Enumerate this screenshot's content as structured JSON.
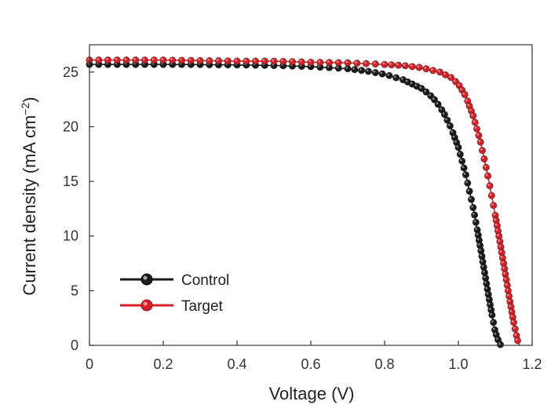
{
  "chart_data": {
    "type": "scatter",
    "xlabel": "Voltage (V)",
    "ylabel": {
      "base": "Current density (mA cm",
      "sup": "−2",
      "close": ")"
    },
    "xlim": [
      0,
      1.2
    ],
    "ylim": [
      0,
      27.5
    ],
    "xticks": [
      0,
      0.2,
      0.4,
      0.6,
      0.8,
      1.0,
      1.2
    ],
    "xtick_labels": [
      "0",
      "0.2",
      "0.4",
      "0.6",
      "0.8",
      "1.0",
      "1.2"
    ],
    "yticks": [
      0,
      5,
      10,
      15,
      20,
      25
    ],
    "ytick_labels": [
      "0",
      "5",
      "10",
      "15",
      "20",
      "25"
    ],
    "grid": false,
    "legend_position": "bottom-left",
    "series": [
      {
        "name": "Control",
        "color": "#1a1a1a",
        "x": [
          0,
          0.1,
          0.2,
          0.3,
          0.4,
          0.5,
          0.6,
          0.7,
          0.75,
          0.8,
          0.85,
          0.9,
          0.92,
          0.94,
          0.96,
          0.98,
          1.0,
          1.02,
          1.04,
          1.05,
          1.06,
          1.07,
          1.08,
          1.09,
          1.1,
          1.11,
          1.115
        ],
        "y": [
          25.7,
          25.7,
          25.7,
          25.68,
          25.65,
          25.6,
          25.5,
          25.3,
          25.1,
          24.8,
          24.3,
          23.5,
          23.0,
          22.3,
          21.3,
          19.9,
          18.1,
          15.6,
          12.6,
          10.8,
          8.9,
          6.9,
          4.9,
          3.0,
          1.2,
          0.3,
          0
        ]
      },
      {
        "name": "Target",
        "color": "#d62027",
        "x": [
          0,
          0.1,
          0.2,
          0.3,
          0.4,
          0.5,
          0.6,
          0.7,
          0.8,
          0.85,
          0.9,
          0.95,
          0.98,
          1.0,
          1.02,
          1.04,
          1.06,
          1.08,
          1.1,
          1.11,
          1.12,
          1.13,
          1.14,
          1.15,
          1.16,
          1.165
        ],
        "y": [
          26.1,
          26.1,
          26.1,
          26.05,
          26.0,
          26.0,
          25.9,
          25.85,
          25.7,
          25.6,
          25.4,
          25.0,
          24.5,
          23.9,
          22.8,
          21.0,
          18.6,
          15.5,
          11.9,
          10.0,
          8.0,
          6.0,
          4.0,
          2.1,
          0.5,
          0
        ]
      }
    ]
  }
}
